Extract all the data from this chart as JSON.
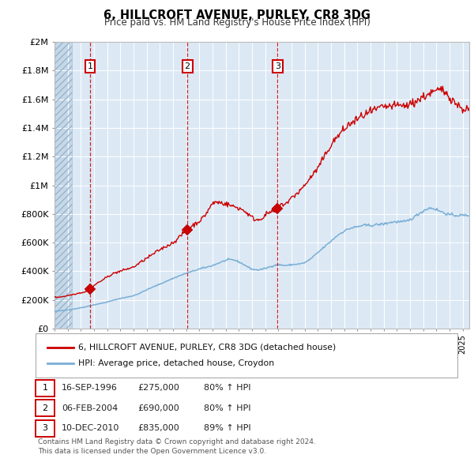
{
  "title": "6, HILLCROFT AVENUE, PURLEY, CR8 3DG",
  "subtitle": "Price paid vs. HM Land Registry's House Price Index (HPI)",
  "ylim": [
    0,
    2000000
  ],
  "yticks": [
    0,
    200000,
    400000,
    600000,
    800000,
    1000000,
    1200000,
    1400000,
    1600000,
    1800000,
    2000000
  ],
  "ytick_labels": [
    "£0",
    "£200K",
    "£400K",
    "£600K",
    "£800K",
    "£1M",
    "£1.2M",
    "£1.4M",
    "£1.6M",
    "£1.8M",
    "£2M"
  ],
  "xlim_start": 1994.0,
  "xlim_end": 2025.5,
  "sales": [
    {
      "date": 1996.71,
      "price": 275000,
      "label": "1"
    },
    {
      "date": 2004.09,
      "price": 690000,
      "label": "2"
    },
    {
      "date": 2010.94,
      "price": 835000,
      "label": "3"
    }
  ],
  "red_line_color": "#cc0000",
  "blue_line_color": "#7aaed6",
  "plot_bg_color": "#dce9f5",
  "grid_color": "#ffffff",
  "label1": "6, HILLCROFT AVENUE, PURLEY, CR8 3DG (detached house)",
  "label2": "HPI: Average price, detached house, Croydon",
  "table_rows": [
    {
      "num": "1",
      "date": "16-SEP-1996",
      "price": "£275,000",
      "change": "80% ↑ HPI"
    },
    {
      "num": "2",
      "date": "06-FEB-2004",
      "price": "£690,000",
      "change": "80% ↑ HPI"
    },
    {
      "num": "3",
      "date": "10-DEC-2010",
      "price": "£835,000",
      "change": "89% ↑ HPI"
    }
  ],
  "footer": "Contains HM Land Registry data © Crown copyright and database right 2024.\nThis data is licensed under the Open Government Licence v3.0.",
  "marker_color": "#cc0000",
  "marker_size": 7
}
